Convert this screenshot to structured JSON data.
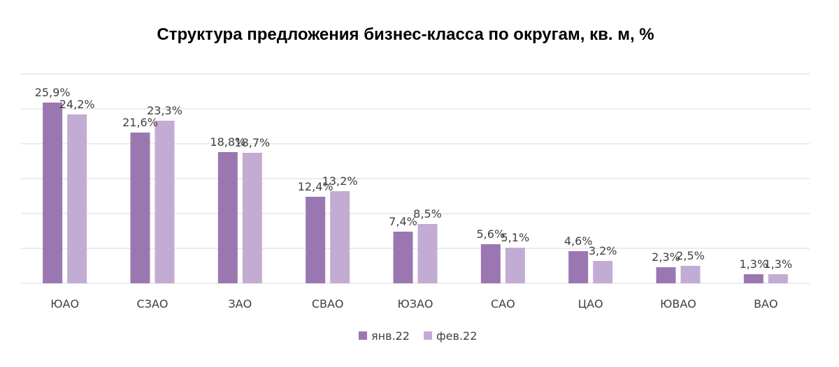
{
  "chart_data": {
    "type": "bar",
    "title": "Структура предложения бизнес-класса по округам, кв. м, %",
    "xlabel": "",
    "ylabel": "",
    "ylim": [
      0,
      30
    ],
    "grid": true,
    "legend_position": "bottom",
    "categories": [
      "ЮАО",
      "СЗАО",
      "ЗАО",
      "СВАО",
      "ЮЗАО",
      "САО",
      "ЦАО",
      "ЮВАО",
      "ВАО"
    ],
    "series": [
      {
        "name": "янв.22",
        "color": "#9b77b1",
        "values": [
          25.9,
          21.6,
          18.8,
          12.4,
          7.4,
          5.6,
          4.6,
          2.3,
          1.3
        ],
        "labels": [
          "25,9%",
          "21,6%",
          "18,8%",
          "12,4%",
          "7,4%",
          "5,6%",
          "4,6%",
          "2,3%",
          "1,3%"
        ]
      },
      {
        "name": "фев.22",
        "color": "#c3acd4",
        "values": [
          24.2,
          23.3,
          18.7,
          13.2,
          8.5,
          5.1,
          3.2,
          2.5,
          1.3
        ],
        "labels": [
          "24,2%",
          "23,3%",
          "18,7%",
          "13,2%",
          "8,5%",
          "5,1%",
          "3,2%",
          "2,5%",
          "1,3%"
        ]
      }
    ]
  }
}
